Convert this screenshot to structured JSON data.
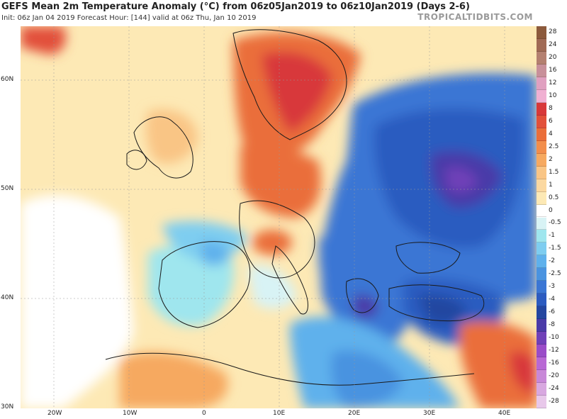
{
  "header": {
    "title": "GEFS Mean 2m Temperature Anomaly (°C) from 06z05Jan2019 to 06z10Jan2019 (Days 2-6)",
    "subtitle": "Init: 06z Jan 04 2019   Forecast Hour: [144]   valid at 06z Thu, Jan 10 2019",
    "brand": "TROPICALTIDBITS.COM"
  },
  "map": {
    "lat_labels": [
      "60N",
      "50N",
      "40N",
      "30N"
    ],
    "lon_labels": [
      "20W",
      "10W",
      "0",
      "10E",
      "20E",
      "30E",
      "40E"
    ],
    "regions": {
      "neutral_atlantic": "near-normal (white / pale)",
      "warm": "Scandinavia, Netherlands, Germany, north Africa coast",
      "cold": "Eastern Europe, Balkans, Turkey, Black Sea"
    }
  },
  "colorbar": {
    "levels": [
      {
        "label": "28",
        "color": "#8c5a3c"
      },
      {
        "label": "24",
        "color": "#a06a55"
      },
      {
        "label": "20",
        "color": "#b48070"
      },
      {
        "label": "16",
        "color": "#c8909a"
      },
      {
        "label": "12",
        "color": "#e0a0c0"
      },
      {
        "label": "10",
        "color": "#f0b0d2"
      },
      {
        "label": "8",
        "color": "#d8383a"
      },
      {
        "label": "6",
        "color": "#e2503a"
      },
      {
        "label": "4",
        "color": "#ea6e3a"
      },
      {
        "label": "2.5",
        "color": "#f28e4c"
      },
      {
        "label": "2",
        "color": "#f6a960"
      },
      {
        "label": "1.5",
        "color": "#f9c585"
      },
      {
        "label": "1",
        "color": "#fbd8a0"
      },
      {
        "label": "0.5",
        "color": "#fde9b5"
      },
      {
        "label": "0",
        "color": "#ffffff"
      },
      {
        "label": "-0.5",
        "color": "#d8f3f5"
      },
      {
        "label": "-1",
        "color": "#9fe6ee"
      },
      {
        "label": "-1.5",
        "color": "#7ecdf0"
      },
      {
        "label": "-2",
        "color": "#5fb1ec"
      },
      {
        "label": "-2.5",
        "color": "#4a93e0"
      },
      {
        "label": "-3",
        "color": "#3b76d4"
      },
      {
        "label": "-4",
        "color": "#2c5bc0"
      },
      {
        "label": "-6",
        "color": "#2446a0"
      },
      {
        "label": "-8",
        "color": "#4a3aa8"
      },
      {
        "label": "-10",
        "color": "#7040b8"
      },
      {
        "label": "-12",
        "color": "#9a4cc8"
      },
      {
        "label": "-16",
        "color": "#b868d4"
      },
      {
        "label": "-20",
        "color": "#c888d8"
      },
      {
        "label": "-24",
        "color": "#d8a8e0"
      },
      {
        "label": "-28",
        "color": "#e8c8ea"
      }
    ]
  }
}
